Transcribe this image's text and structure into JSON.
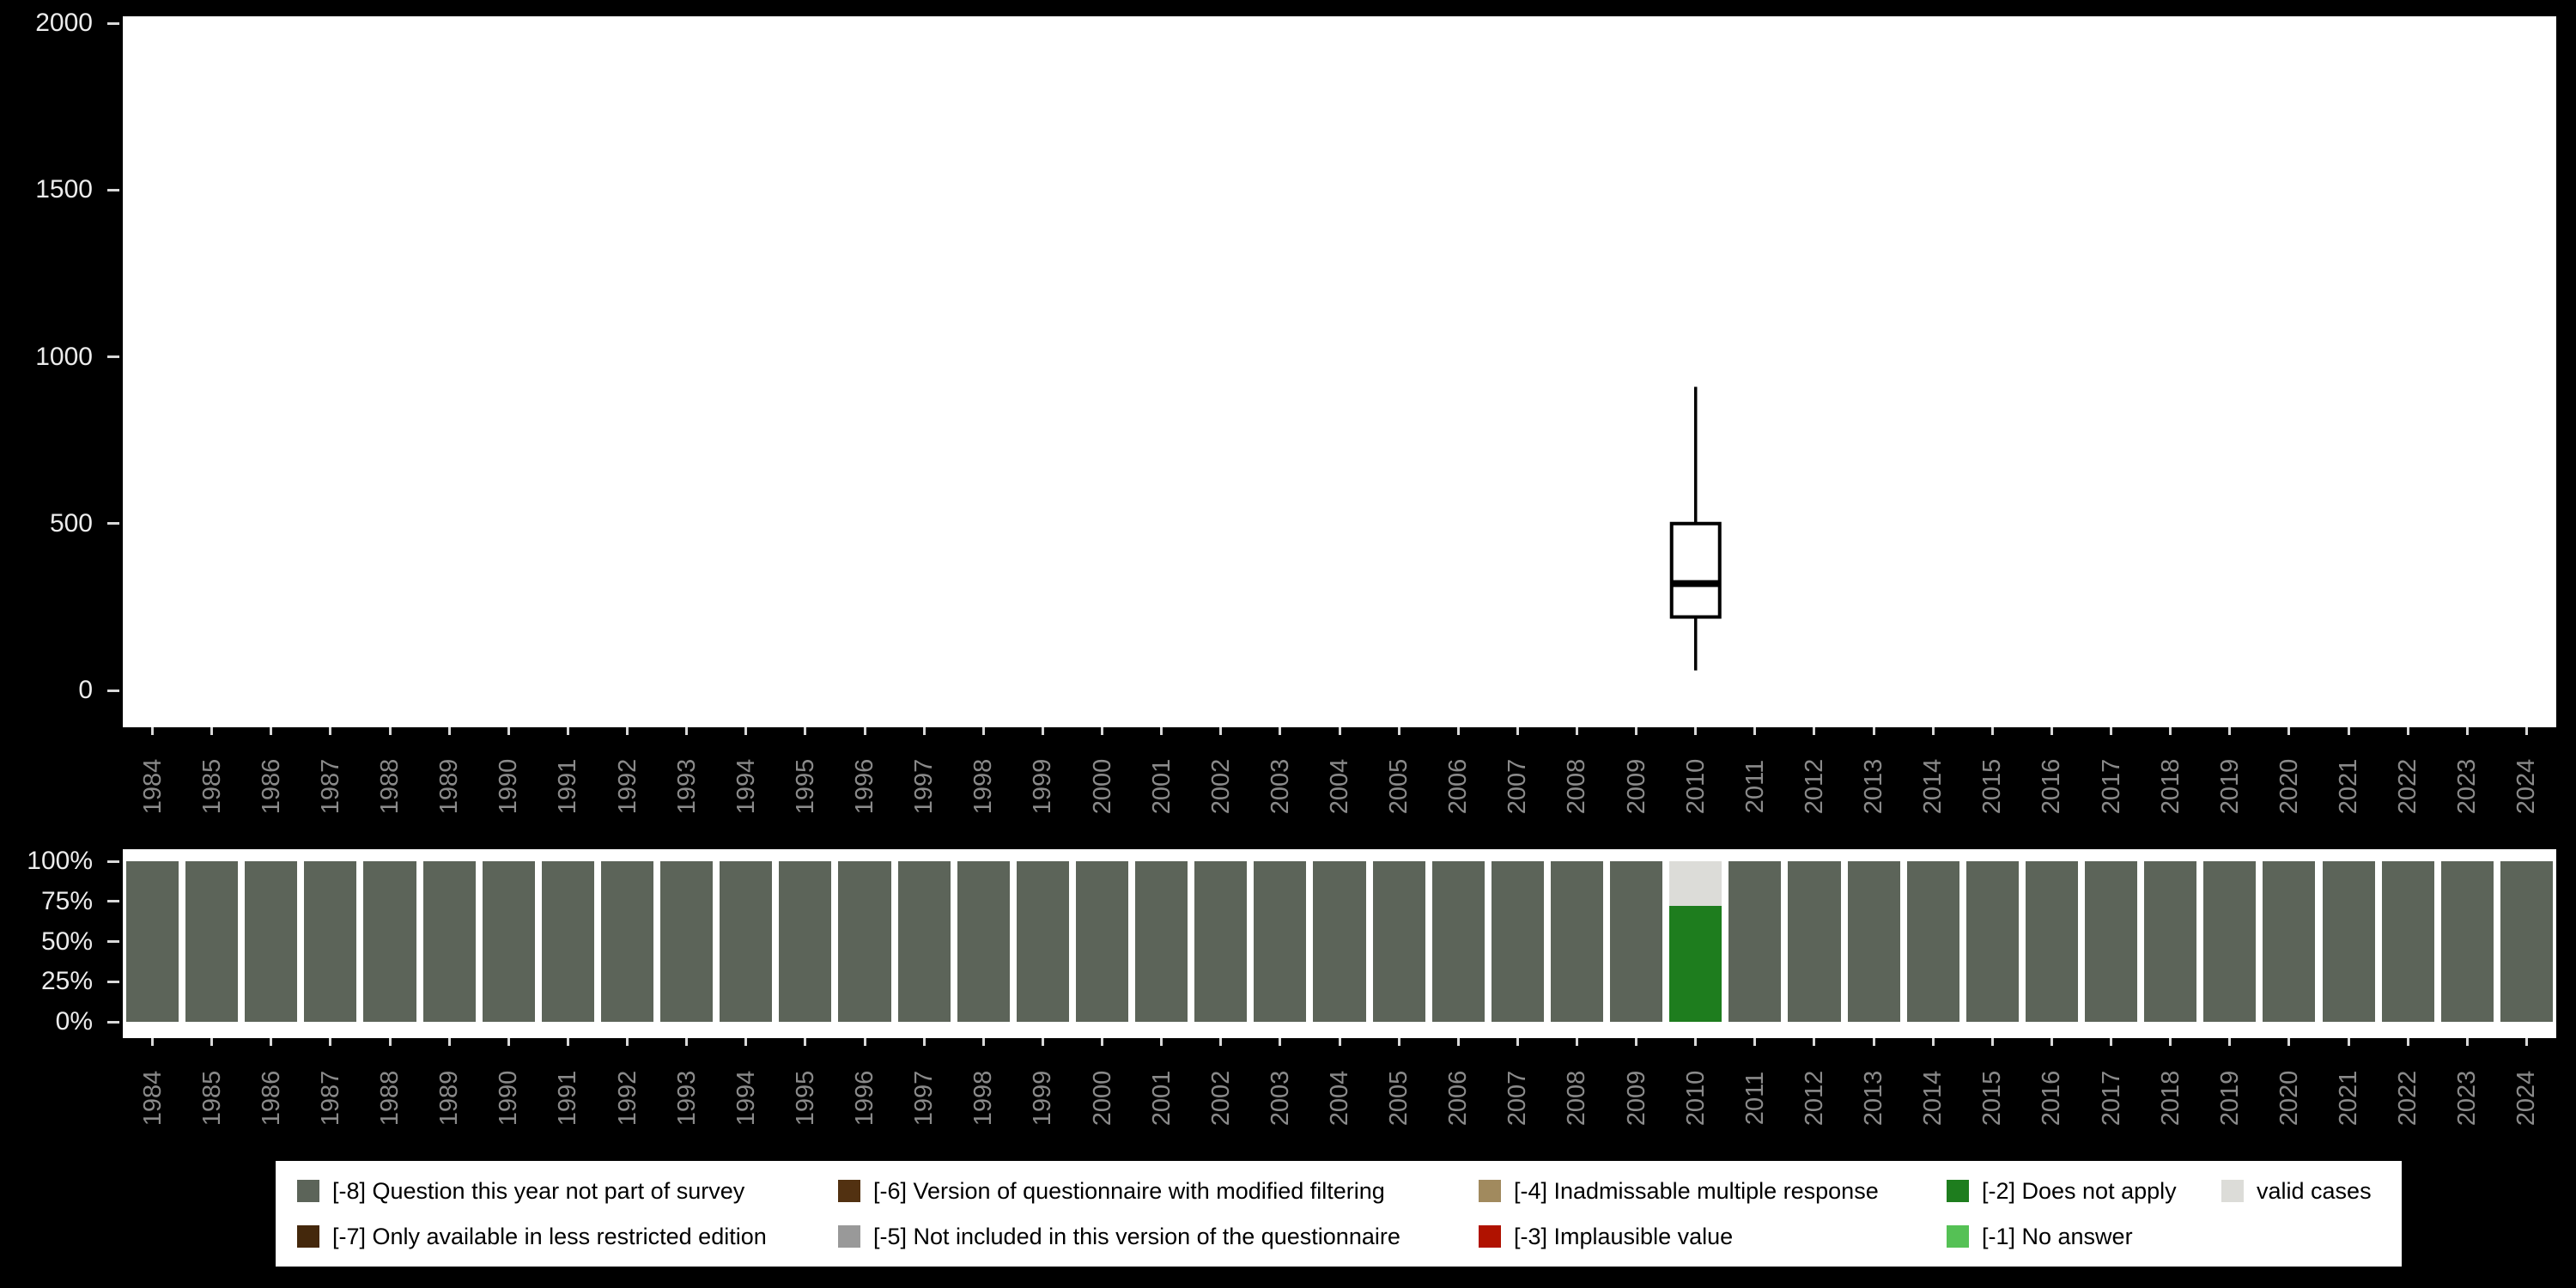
{
  "chart_data": [
    {
      "type": "boxplot",
      "panel": "top",
      "title": "",
      "xlabel": "",
      "ylabel": "",
      "ylim": [
        0,
        2000
      ],
      "yticks": [
        "0",
        "500",
        "1000",
        "1500",
        "2000"
      ],
      "ytick_values": [
        0,
        500,
        1000,
        1500,
        2000
      ],
      "grid": false,
      "categories": [
        "1984",
        "1985",
        "1986",
        "1987",
        "1988",
        "1989",
        "1990",
        "1991",
        "1992",
        "1993",
        "1994",
        "1995",
        "1996",
        "1997",
        "1998",
        "1999",
        "2000",
        "2001",
        "2002",
        "2003",
        "2004",
        "2005",
        "2006",
        "2007",
        "2008",
        "2009",
        "2010",
        "2011",
        "2012",
        "2013",
        "2014",
        "2015",
        "2016",
        "2017",
        "2018",
        "2019",
        "2020",
        "2021",
        "2022",
        "2023",
        "2024"
      ],
      "boxes": [
        {
          "category": "2010",
          "whisker_low": 60,
          "q1": 220,
          "median": 320,
          "q3": 500,
          "whisker_high": 910
        }
      ]
    },
    {
      "type": "stacked-bar-percent",
      "panel": "bottom",
      "title": "",
      "xlabel": "",
      "ylabel": "",
      "ylim_percent": [
        0,
        100
      ],
      "yticks": [
        "0%",
        "25%",
        "50%",
        "75%",
        "100%"
      ],
      "ytick_values": [
        0,
        25,
        50,
        75,
        100
      ],
      "categories": [
        "1984",
        "1985",
        "1986",
        "1987",
        "1988",
        "1989",
        "1990",
        "1991",
        "1992",
        "1993",
        "1994",
        "1995",
        "1996",
        "1997",
        "1998",
        "1999",
        "2000",
        "2001",
        "2002",
        "2003",
        "2004",
        "2005",
        "2006",
        "2007",
        "2008",
        "2009",
        "2010",
        "2011",
        "2012",
        "2013",
        "2014",
        "2015",
        "2016",
        "2017",
        "2018",
        "2019",
        "2020",
        "2021",
        "2022",
        "2023",
        "2024"
      ],
      "default_segment": {
        "label": "[-8] Question this year not part of survey",
        "pct": 100
      },
      "overrides": {
        "2010": [
          {
            "label": "[-2] Does not apply",
            "pct": 72
          },
          {
            "label": "valid cases",
            "pct": 28
          }
        ]
      },
      "segment_order_note": "segments listed bottom-to-top"
    }
  ],
  "legend": {
    "position": "bottom",
    "items": [
      {
        "label": "[-8] Question this year not part of survey",
        "color": "#5c6459"
      },
      {
        "label": "[-7] Only available in less restricted edition",
        "color": "#44280c"
      },
      {
        "label": "[-6] Version of questionnaire with modified filtering",
        "color": "#523111"
      },
      {
        "label": "[-5] Not included in this version of the questionnaire",
        "color": "#999999"
      },
      {
        "label": "[-4] Inadmissable multiple response",
        "color": "#a18a5e"
      },
      {
        "label": "[-3] Implausible value",
        "color": "#b01200"
      },
      {
        "label": "[-2] Does not apply",
        "color": "#1e7d1e"
      },
      {
        "label": "[-1] No answer",
        "color": "#55c155"
      },
      {
        "label": "valid cases",
        "color": "#dcdcd8"
      }
    ]
  },
  "colors": {
    "background": "#000000",
    "panel": "#ffffff",
    "axis_value_text": "#ececec",
    "axis_year_text": "#8a8a8a",
    "box_stroke": "#000000"
  }
}
